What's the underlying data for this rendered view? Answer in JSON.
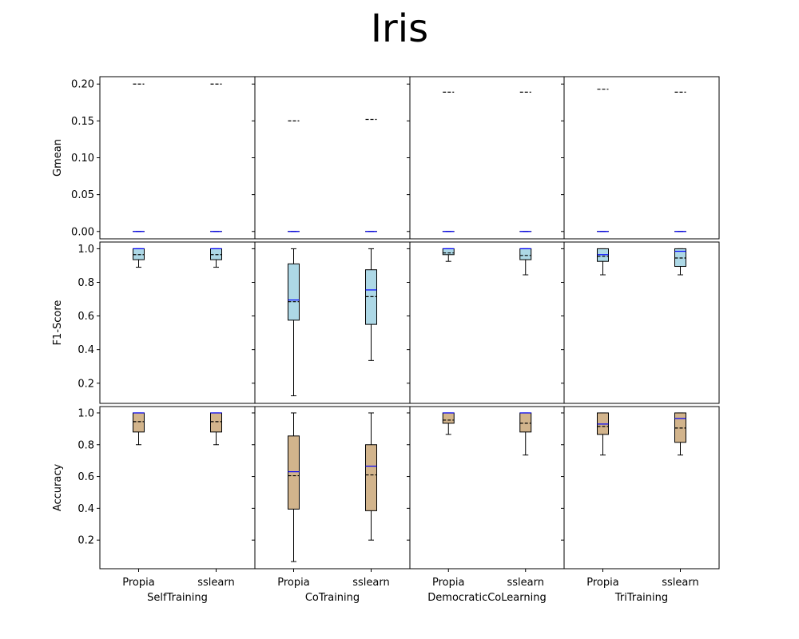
{
  "title": "Iris",
  "chart_data": {
    "type": "box",
    "title": "Iris",
    "algorithms": [
      "SelfTraining",
      "CoTraining",
      "DemocraticCoLearning",
      "TriTraining"
    ],
    "implementations": [
      "Propia",
      "sslearn"
    ],
    "metrics": [
      {
        "name": "Gmean",
        "ylim": [
          -0.01,
          0.21
        ],
        "yticks": [
          0.0,
          0.05,
          0.1,
          0.15,
          0.2
        ],
        "ytick_labels": [
          "0.00",
          "0.05",
          "0.10",
          "0.15",
          "0.20"
        ],
        "box_color": "#add8e6",
        "boxes": [
          [
            {
              "min": 0,
              "q1": 0,
              "median": 0,
              "q3": 0,
              "max": 0,
              "mean": 0.2
            },
            {
              "min": 0,
              "q1": 0,
              "median": 0,
              "q3": 0,
              "max": 0,
              "mean": 0.2
            }
          ],
          [
            {
              "min": 0,
              "q1": 0,
              "median": 0,
              "q3": 0,
              "max": 0,
              "mean": 0.15
            },
            {
              "min": 0,
              "q1": 0,
              "median": 0,
              "q3": 0,
              "max": 0,
              "mean": 0.152
            }
          ],
          [
            {
              "min": 0,
              "q1": 0,
              "median": 0,
              "q3": 0,
              "max": 0,
              "mean": 0.189
            },
            {
              "min": 0,
              "q1": 0,
              "median": 0,
              "q3": 0,
              "max": 0,
              "mean": 0.189
            }
          ],
          [
            {
              "min": 0,
              "q1": 0,
              "median": 0,
              "q3": 0,
              "max": 0,
              "mean": 0.193
            },
            {
              "min": 0,
              "q1": 0,
              "median": 0,
              "q3": 0,
              "max": 0,
              "mean": 0.189
            }
          ]
        ]
      },
      {
        "name": "F1-Score",
        "ylim": [
          0.08,
          1.04
        ],
        "yticks": [
          0.2,
          0.4,
          0.6,
          0.8,
          1.0
        ],
        "ytick_labels": [
          "0.2",
          "0.4",
          "0.6",
          "0.8",
          "1.0"
        ],
        "box_color": "#add8e6",
        "boxes": [
          [
            {
              "min": 0.89,
              "q1": 0.935,
              "median": 1.0,
              "q3": 1.0,
              "max": 1.0,
              "mean": 0.965
            },
            {
              "min": 0.89,
              "q1": 0.935,
              "median": 1.0,
              "q3": 1.0,
              "max": 1.0,
              "mean": 0.965
            }
          ],
          [
            {
              "min": 0.125,
              "q1": 0.575,
              "median": 0.695,
              "q3": 0.91,
              "max": 1.0,
              "mean": 0.685
            },
            {
              "min": 0.335,
              "q1": 0.55,
              "median": 0.755,
              "q3": 0.875,
              "max": 1.0,
              "mean": 0.715
            }
          ],
          [
            {
              "min": 0.925,
              "q1": 0.965,
              "median": 1.0,
              "q3": 1.0,
              "max": 1.0,
              "mean": 0.975
            },
            {
              "min": 0.845,
              "q1": 0.935,
              "median": 1.0,
              "q3": 1.0,
              "max": 1.0,
              "mean": 0.96
            }
          ],
          [
            {
              "min": 0.845,
              "q1": 0.925,
              "median": 0.965,
              "q3": 1.0,
              "max": 1.0,
              "mean": 0.955
            },
            {
              "min": 0.845,
              "q1": 0.895,
              "median": 0.985,
              "q3": 1.0,
              "max": 1.0,
              "mean": 0.945
            }
          ]
        ]
      },
      {
        "name": "Accuracy",
        "ylim": [
          0.02,
          1.04
        ],
        "yticks": [
          0.2,
          0.4,
          0.6,
          0.8,
          1.0
        ],
        "ytick_labels": [
          "0.2",
          "0.4",
          "0.6",
          "0.8",
          "1.0"
        ],
        "box_color": "#d2b48c",
        "boxes": [
          [
            {
              "min": 0.8,
              "q1": 0.88,
              "median": 1.0,
              "q3": 1.0,
              "max": 1.0,
              "mean": 0.945
            },
            {
              "min": 0.8,
              "q1": 0.88,
              "median": 1.0,
              "q3": 1.0,
              "max": 1.0,
              "mean": 0.945
            }
          ],
          [
            {
              "min": 0.065,
              "q1": 0.395,
              "median": 0.63,
              "q3": 0.855,
              "max": 1.0,
              "mean": 0.605
            },
            {
              "min": 0.2,
              "q1": 0.385,
              "median": 0.665,
              "q3": 0.8,
              "max": 1.0,
              "mean": 0.61
            }
          ],
          [
            {
              "min": 0.865,
              "q1": 0.935,
              "median": 1.0,
              "q3": 1.0,
              "max": 1.0,
              "mean": 0.955
            },
            {
              "min": 0.735,
              "q1": 0.88,
              "median": 1.0,
              "q3": 1.0,
              "max": 1.0,
              "mean": 0.935
            }
          ],
          [
            {
              "min": 0.735,
              "q1": 0.865,
              "median": 0.93,
              "q3": 1.0,
              "max": 1.0,
              "mean": 0.915
            },
            {
              "min": 0.735,
              "q1": 0.815,
              "median": 0.965,
              "q3": 1.0,
              "max": 1.0,
              "mean": 0.905
            }
          ]
        ]
      }
    ],
    "median_color": "#0000ff",
    "mean_line_style": "dashed",
    "grid": false,
    "legend": "none"
  }
}
